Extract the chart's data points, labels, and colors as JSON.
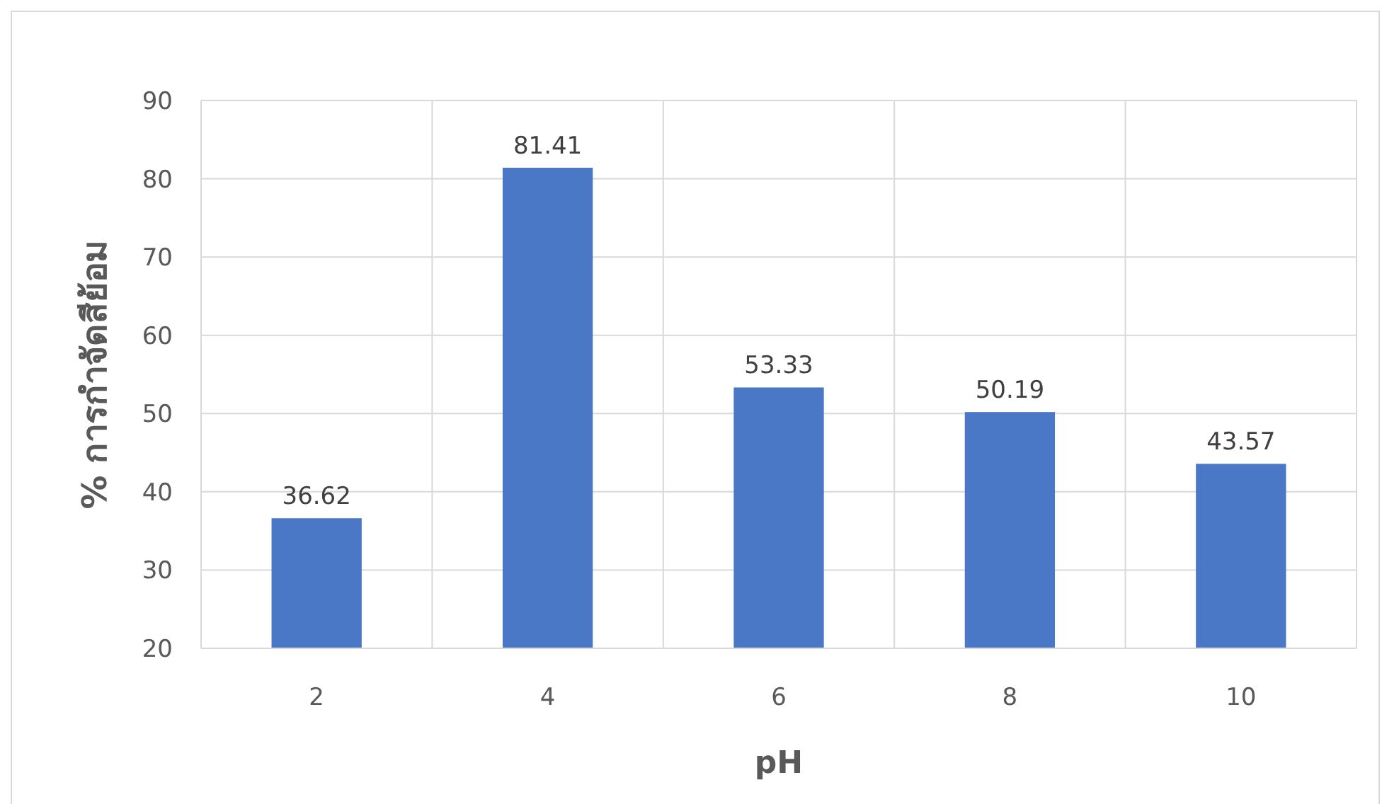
{
  "chart_data": {
    "type": "bar",
    "xlabel": "pH",
    "ylabel": "% การกำจัดสีย้อม",
    "categories": [
      "2",
      "4",
      "6",
      "8",
      "10"
    ],
    "values": [
      36.62,
      81.41,
      53.33,
      50.19,
      43.57
    ],
    "color": "#4a77c6",
    "data_labels": true,
    "ylim": [
      20,
      90
    ],
    "yticks": [
      20,
      30,
      40,
      50,
      60,
      70,
      80,
      90
    ],
    "grid": true
  }
}
